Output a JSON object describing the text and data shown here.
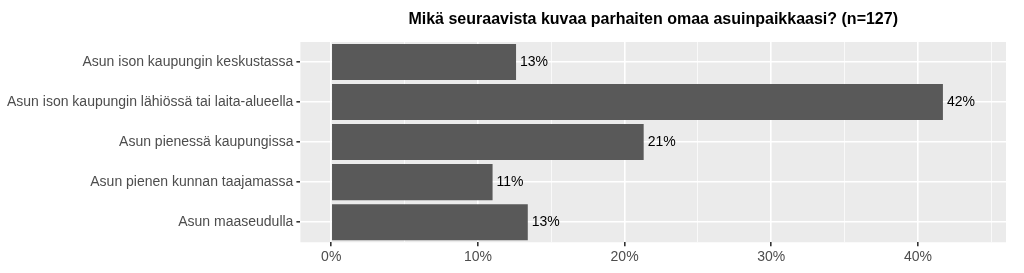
{
  "chart_data": {
    "type": "bar",
    "orientation": "horizontal",
    "title": "Mikä seuraavista kuvaa parhaiten omaa asuinpaikkaasi? (n=127)",
    "categories": [
      "Asun ison kaupungin keskustassa",
      "Asun ison kaupungin lähiössä tai laita-alueella",
      "Asun pienessä kaupungissa",
      "Asun pienen kunnan taajamassa",
      "Asun maaseudulla"
    ],
    "values": [
      12.6,
      41.7,
      21.3,
      11.0,
      13.4
    ],
    "value_labels": [
      "13%",
      "42%",
      "21%",
      "11%",
      "13%"
    ],
    "color": "#595959",
    "xlim": [
      -2.1,
      46
    ],
    "xticks": [
      {
        "value": 0,
        "label": "0%"
      },
      {
        "value": 5,
        "label": null
      },
      {
        "value": 10,
        "label": "10%"
      },
      {
        "value": 15,
        "label": null
      },
      {
        "value": 20,
        "label": "20%"
      },
      {
        "value": 25,
        "label": null
      },
      {
        "value": 30,
        "label": "30%"
      },
      {
        "value": 35,
        "label": null
      },
      {
        "value": 40,
        "label": "40%"
      },
      {
        "value": 45,
        "label": null
      }
    ],
    "grid": true,
    "legend": false
  }
}
